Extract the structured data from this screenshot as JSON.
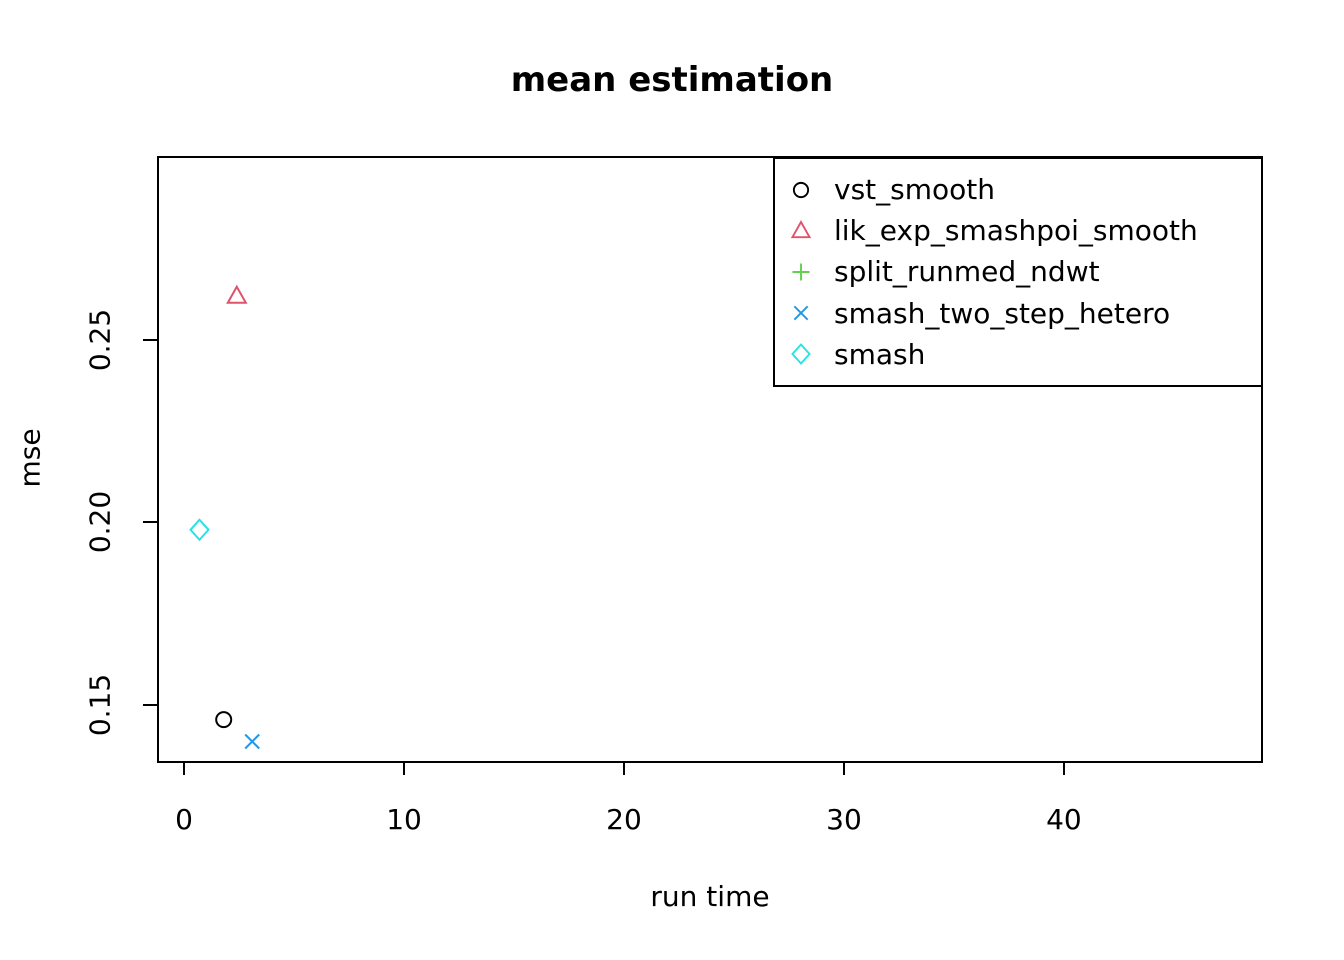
{
  "page": {
    "background": "#ffffff",
    "text_color": "#000000",
    "axis_color": "#000000"
  },
  "chart_data": {
    "type": "scatter",
    "title": "mean estimation",
    "xlabel": "run time",
    "ylabel": "mse",
    "xlim": [
      -1.23,
      49.05
    ],
    "ylim": [
      0.1341,
      0.3004
    ],
    "grid": false,
    "x_ticks": {
      "values": [
        0,
        10,
        20,
        30,
        40
      ],
      "labels": [
        "0",
        "10",
        "20",
        "30",
        "40"
      ]
    },
    "y_ticks": {
      "values": [
        0.15,
        0.2,
        0.25
      ],
      "labels": [
        "0.15",
        "0.20",
        "0.25"
      ]
    },
    "legend": {
      "position": "top-right",
      "border": true
    },
    "series": [
      {
        "name": "vst_smooth",
        "marker": "circle",
        "color": "#000000",
        "points": [
          {
            "x": 1.8,
            "y": 0.146
          }
        ]
      },
      {
        "name": "lik_exp_smashpoi_smooth",
        "marker": "triangle-up",
        "color": "#DF536B",
        "points": [
          {
            "x": 2.4,
            "y": 0.262
          }
        ]
      },
      {
        "name": "split_runmed_ndwt",
        "marker": "plus",
        "color": "#61D04F",
        "points": []
      },
      {
        "name": "smash_two_step_hetero",
        "marker": "x",
        "color": "#2297E6",
        "points": [
          {
            "x": 3.1,
            "y": 0.14
          }
        ]
      },
      {
        "name": "smash",
        "marker": "diamond",
        "color": "#28E2E5",
        "points": [
          {
            "x": 0.7,
            "y": 0.198
          }
        ]
      }
    ]
  }
}
